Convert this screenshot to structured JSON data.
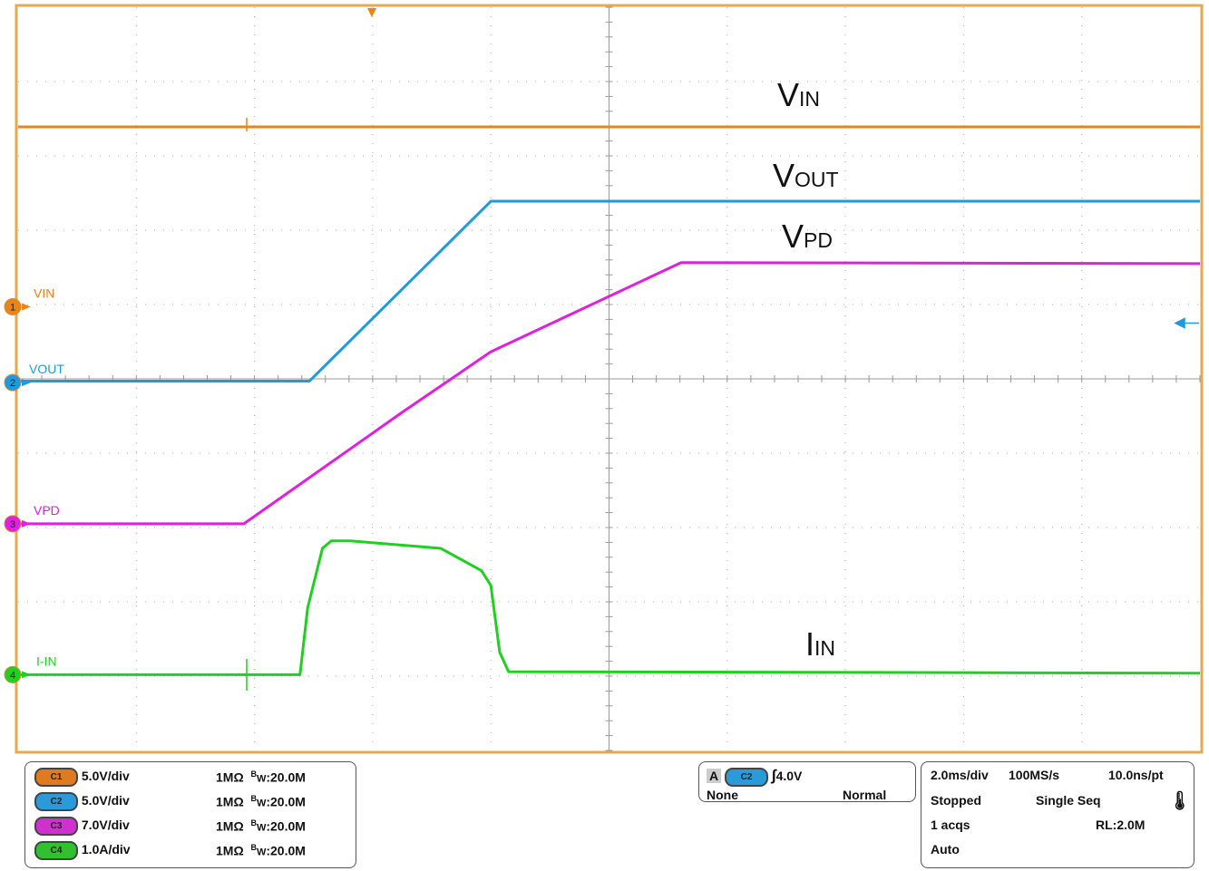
{
  "chart_data": {
    "type": "line",
    "xlabel": "",
    "ylabel": "",
    "xlim_ms": [
      -6,
      14
    ],
    "grid": true,
    "series": [
      {
        "name": "VIN",
        "channel": "1",
        "color": "#e8841a",
        "unit": "V",
        "points": [
          [
            -6,
            12.1
          ],
          [
            14,
            12.1
          ]
        ]
      },
      {
        "name": "VOUT",
        "channel": "2",
        "color": "#1e9be0",
        "unit": "V",
        "points": [
          [
            -6,
            0.1
          ],
          [
            -1.07,
            0.1
          ],
          [
            2.0,
            12.2
          ],
          [
            14,
            12.2
          ]
        ]
      },
      {
        "name": "VPD",
        "channel": "3",
        "color": "#e020e0",
        "unit": "V",
        "points": [
          [
            -6,
            0
          ],
          [
            -2.18,
            0
          ],
          [
            0.5,
            10.5
          ],
          [
            2.0,
            16.2
          ],
          [
            5.22,
            24.6
          ],
          [
            14,
            24.5
          ]
        ]
      },
      {
        "name": "I-IN",
        "channel": "4",
        "color": "#20d020",
        "unit": "A",
        "points": [
          [
            -6,
            0
          ],
          [
            -1.23,
            0
          ],
          [
            -1.1,
            0.9
          ],
          [
            -0.85,
            1.7
          ],
          [
            -0.7,
            1.8
          ],
          [
            -0.38,
            1.8
          ],
          [
            1.15,
            1.7
          ],
          [
            1.84,
            1.4
          ],
          [
            2.0,
            1.2
          ],
          [
            2.15,
            0.3
          ],
          [
            2.3,
            0.04
          ],
          [
            14,
            0.02
          ]
        ]
      }
    ],
    "annotations": [
      {
        "main": "V",
        "sub": "IN"
      },
      {
        "main": "V",
        "sub": "OUT"
      },
      {
        "main": "V",
        "sub": "PD"
      },
      {
        "main": "I",
        "sub": "IN"
      }
    ]
  },
  "channels": [
    {
      "id": "C1",
      "scale": "5.0V/div",
      "impedance": "1MΩ",
      "bw_prefix": "B",
      "bw_sub": "W",
      "bw": ":20.0M",
      "color": "#e07a20"
    },
    {
      "id": "C2",
      "scale": "5.0V/div",
      "impedance": "1MΩ",
      "bw_prefix": "B",
      "bw_sub": "W",
      "bw": ":20.0M",
      "color": "#2a9ad8"
    },
    {
      "id": "C3",
      "scale": "7.0V/div",
      "impedance": "1MΩ",
      "bw_prefix": "B",
      "bw_sub": "W",
      "bw": ":20.0M",
      "color": "#d030d0"
    },
    {
      "id": "C4",
      "scale": "1.0A/div",
      "impedance": "1MΩ",
      "bw_prefix": "B",
      "bw_sub": "W",
      "bw": ":20.0M",
      "color": "#30c030"
    }
  ],
  "trigger": {
    "mode_letter": "A",
    "source": "C2",
    "slope": "rising",
    "level": "4.0V",
    "coupling": "None",
    "mode": "Normal"
  },
  "acquisition": {
    "timebase": "2.0ms/div",
    "sample_rate": "100MS/s",
    "resolution": "10.0ns/pt",
    "state": "Stopped",
    "run_mode": "Single Seq",
    "acqs": "1 acqs",
    "record_length": "RL:2.0M",
    "trigger_auto": "Auto"
  },
  "markers": {
    "ch1": "1",
    "ch2": "2",
    "ch3": "3",
    "ch4": "4"
  }
}
